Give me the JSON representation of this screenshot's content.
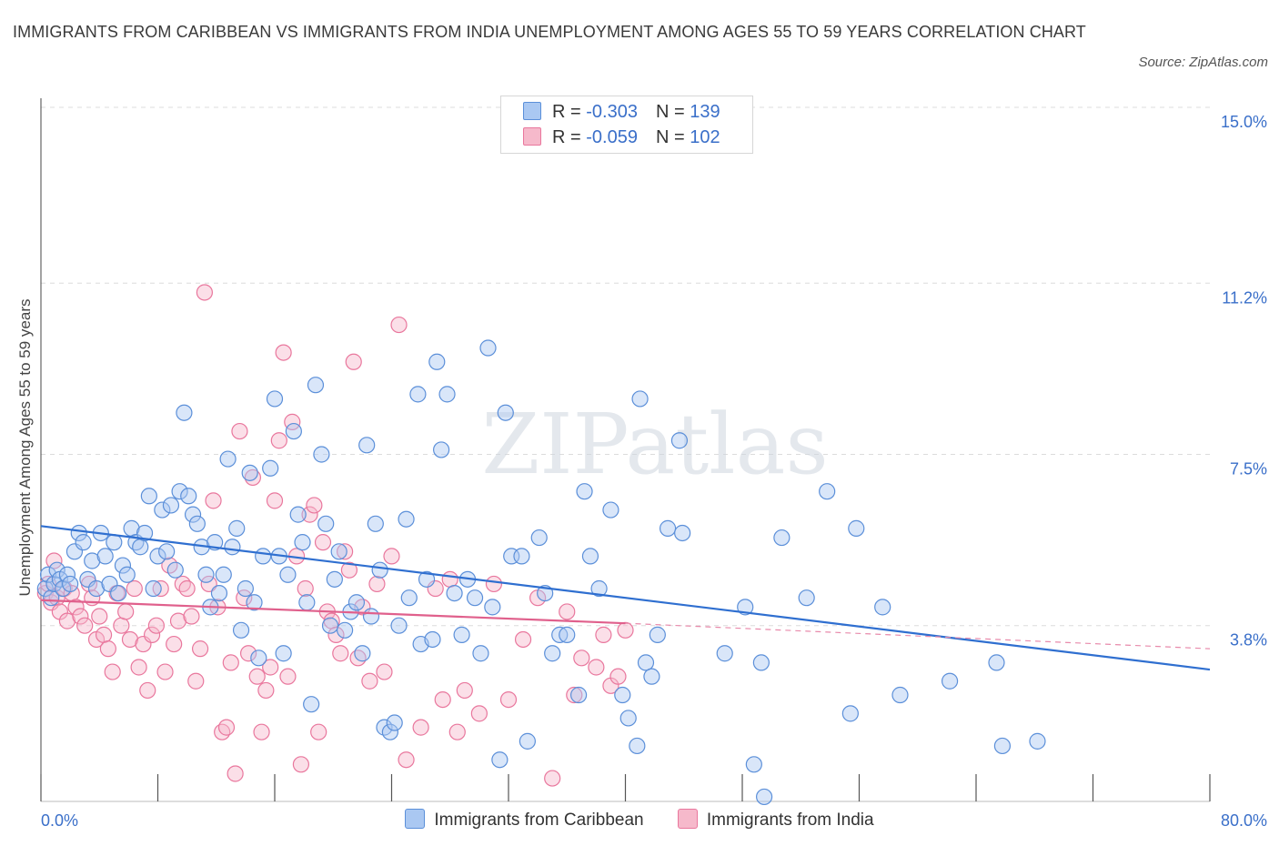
{
  "title": "IMMIGRANTS FROM CARIBBEAN VS IMMIGRANTS FROM INDIA UNEMPLOYMENT AMONG AGES 55 TO 59 YEARS CORRELATION CHART",
  "source": "Source: ZipAtlas.com",
  "watermark": "ZIPatlas",
  "legend": {
    "rows": [
      {
        "r_label": "R = ",
        "r_value": "-0.303",
        "n_label": "N = ",
        "n_value": "139",
        "color": "#aac8f2"
      },
      {
        "r_label": "R = ",
        "r_value": "-0.059",
        "n_label": "N = ",
        "n_value": "102",
        "color": "#f6b9cb"
      }
    ]
  },
  "chart_data": {
    "type": "scatter",
    "title": "IMMIGRANTS FROM CARIBBEAN VS IMMIGRANTS FROM INDIA UNEMPLOYMENT AMONG AGES 55 TO 59 YEARS CORRELATION CHART",
    "xlabel": "",
    "ylabel": "Unemployment Among Ages 55 to 59 years",
    "xlim": [
      0,
      80
    ],
    "ylim": [
      0,
      15
    ],
    "x_tick_labels": [
      "0.0%",
      "80.0%"
    ],
    "y_ticks": [
      3.8,
      7.5,
      11.2,
      15.0
    ],
    "y_tick_labels": [
      "3.8%",
      "7.5%",
      "11.2%",
      "15.0%"
    ],
    "grid": true,
    "legend_position": "top-center",
    "series": [
      {
        "name": "Immigrants from Caribbean",
        "color": "#5b8fd9",
        "fill": "#aac8f2",
        "trend": {
          "x": [
            0,
            80
          ],
          "y": [
            5.95,
            2.85
          ]
        },
        "points": [
          [
            0.3,
            4.6
          ],
          [
            0.5,
            4.9
          ],
          [
            0.7,
            4.4
          ],
          [
            0.9,
            4.7
          ],
          [
            1.1,
            5.0
          ],
          [
            1.3,
            4.8
          ],
          [
            1.5,
            4.6
          ],
          [
            1.8,
            4.9
          ],
          [
            2.0,
            4.7
          ],
          [
            2.3,
            5.4
          ],
          [
            2.6,
            5.8
          ],
          [
            2.9,
            5.6
          ],
          [
            3.2,
            4.8
          ],
          [
            3.5,
            5.2
          ],
          [
            3.8,
            4.6
          ],
          [
            4.1,
            5.8
          ],
          [
            4.4,
            5.3
          ],
          [
            4.7,
            4.7
          ],
          [
            5.0,
            5.6
          ],
          [
            5.3,
            4.5
          ],
          [
            5.6,
            5.1
          ],
          [
            5.9,
            4.9
          ],
          [
            6.2,
            5.9
          ],
          [
            6.5,
            5.6
          ],
          [
            6.8,
            5.5
          ],
          [
            7.1,
            5.8
          ],
          [
            7.4,
            6.6
          ],
          [
            7.7,
            4.6
          ],
          [
            8.0,
            5.3
          ],
          [
            8.3,
            6.3
          ],
          [
            8.6,
            5.4
          ],
          [
            8.9,
            6.4
          ],
          [
            9.2,
            5.0
          ],
          [
            9.5,
            6.7
          ],
          [
            9.8,
            8.4
          ],
          [
            10.1,
            6.6
          ],
          [
            10.4,
            6.2
          ],
          [
            10.7,
            6.0
          ],
          [
            11.0,
            5.5
          ],
          [
            11.3,
            4.9
          ],
          [
            11.6,
            4.2
          ],
          [
            11.9,
            5.6
          ],
          [
            12.2,
            4.5
          ],
          [
            12.5,
            4.9
          ],
          [
            12.8,
            7.4
          ],
          [
            13.1,
            5.5
          ],
          [
            13.4,
            5.9
          ],
          [
            13.7,
            3.7
          ],
          [
            14.0,
            4.6
          ],
          [
            14.3,
            7.1
          ],
          [
            14.6,
            4.3
          ],
          [
            14.9,
            3.1
          ],
          [
            15.2,
            5.3
          ],
          [
            15.7,
            7.2
          ],
          [
            16.0,
            8.7
          ],
          [
            16.3,
            5.3
          ],
          [
            16.6,
            3.2
          ],
          [
            16.9,
            4.9
          ],
          [
            17.3,
            8.0
          ],
          [
            17.6,
            6.2
          ],
          [
            17.9,
            5.6
          ],
          [
            18.2,
            4.3
          ],
          [
            18.5,
            2.1
          ],
          [
            18.8,
            9.0
          ],
          [
            19.2,
            7.5
          ],
          [
            19.5,
            6.0
          ],
          [
            19.8,
            3.8
          ],
          [
            20.1,
            4.8
          ],
          [
            20.4,
            5.4
          ],
          [
            20.8,
            3.7
          ],
          [
            21.2,
            4.1
          ],
          [
            21.6,
            4.3
          ],
          [
            22.0,
            3.2
          ],
          [
            22.3,
            7.7
          ],
          [
            22.6,
            4.0
          ],
          [
            22.9,
            6.0
          ],
          [
            23.2,
            5.0
          ],
          [
            23.5,
            1.6
          ],
          [
            23.9,
            1.5
          ],
          [
            24.2,
            1.7
          ],
          [
            24.5,
            3.8
          ],
          [
            25.0,
            6.1
          ],
          [
            25.2,
            4.4
          ],
          [
            25.8,
            8.8
          ],
          [
            26.0,
            3.4
          ],
          [
            26.4,
            4.8
          ],
          [
            26.8,
            3.5
          ],
          [
            27.1,
            9.5
          ],
          [
            27.4,
            7.6
          ],
          [
            27.8,
            8.8
          ],
          [
            28.3,
            4.5
          ],
          [
            28.8,
            3.6
          ],
          [
            29.2,
            4.8
          ],
          [
            29.7,
            4.4
          ],
          [
            30.1,
            3.2
          ],
          [
            30.6,
            9.8
          ],
          [
            30.9,
            4.2
          ],
          [
            31.4,
            0.9
          ],
          [
            31.8,
            8.4
          ],
          [
            32.2,
            5.3
          ],
          [
            32.9,
            5.3
          ],
          [
            33.3,
            1.3
          ],
          [
            34.1,
            5.7
          ],
          [
            34.5,
            4.5
          ],
          [
            35.0,
            3.2
          ],
          [
            35.5,
            3.6
          ],
          [
            36.0,
            3.6
          ],
          [
            36.8,
            2.3
          ],
          [
            37.2,
            6.7
          ],
          [
            37.6,
            5.3
          ],
          [
            38.2,
            4.6
          ],
          [
            39.0,
            6.3
          ],
          [
            39.8,
            2.3
          ],
          [
            40.2,
            1.8
          ],
          [
            40.8,
            1.2
          ],
          [
            41.0,
            8.7
          ],
          [
            41.4,
            3.0
          ],
          [
            41.8,
            2.7
          ],
          [
            42.2,
            3.6
          ],
          [
            42.9,
            5.9
          ],
          [
            43.7,
            7.8
          ],
          [
            43.9,
            5.8
          ],
          [
            46.8,
            3.2
          ],
          [
            48.2,
            4.2
          ],
          [
            48.8,
            0.8
          ],
          [
            49.3,
            3.0
          ],
          [
            49.5,
            0.1
          ],
          [
            50.7,
            5.7
          ],
          [
            52.4,
            4.4
          ],
          [
            53.8,
            6.7
          ],
          [
            55.4,
            1.9
          ],
          [
            55.8,
            5.9
          ],
          [
            57.6,
            4.2
          ],
          [
            58.8,
            2.3
          ],
          [
            62.2,
            2.6
          ],
          [
            65.4,
            3.0
          ],
          [
            65.8,
            1.2
          ],
          [
            68.2,
            1.3
          ]
        ]
      },
      {
        "name": "Immigrants from India",
        "color": "#e9779d",
        "fill": "#f6b9cb",
        "trend": {
          "x": [
            0,
            40
          ],
          "y": [
            4.35,
            3.85
          ]
        },
        "trend_extension": {
          "x": [
            40,
            80
          ],
          "y": [
            3.85,
            3.3
          ]
        },
        "points": [
          [
            0.3,
            4.5
          ],
          [
            0.5,
            4.7
          ],
          [
            0.7,
            4.3
          ],
          [
            0.9,
            5.2
          ],
          [
            1.1,
            4.4
          ],
          [
            1.3,
            4.1
          ],
          [
            1.6,
            4.6
          ],
          [
            1.8,
            3.9
          ],
          [
            2.1,
            4.5
          ],
          [
            2.4,
            4.2
          ],
          [
            2.7,
            4.0
          ],
          [
            3.0,
            3.8
          ],
          [
            3.3,
            4.7
          ],
          [
            3.5,
            4.4
          ],
          [
            3.8,
            3.5
          ],
          [
            4.0,
            4.0
          ],
          [
            4.3,
            3.6
          ],
          [
            4.6,
            3.3
          ],
          [
            4.9,
            2.8
          ],
          [
            5.2,
            4.5
          ],
          [
            5.5,
            3.8
          ],
          [
            5.8,
            4.1
          ],
          [
            6.1,
            3.5
          ],
          [
            6.4,
            4.6
          ],
          [
            6.7,
            2.9
          ],
          [
            7.0,
            3.4
          ],
          [
            7.3,
            2.4
          ],
          [
            7.6,
            3.6
          ],
          [
            7.9,
            3.8
          ],
          [
            8.2,
            4.6
          ],
          [
            8.5,
            2.8
          ],
          [
            8.8,
            5.1
          ],
          [
            9.1,
            3.4
          ],
          [
            9.4,
            3.9
          ],
          [
            9.7,
            4.7
          ],
          [
            10.0,
            4.6
          ],
          [
            10.3,
            4.0
          ],
          [
            10.6,
            2.6
          ],
          [
            10.9,
            3.3
          ],
          [
            11.2,
            11.0
          ],
          [
            11.5,
            4.7
          ],
          [
            11.8,
            6.5
          ],
          [
            12.1,
            4.2
          ],
          [
            12.4,
            1.5
          ],
          [
            12.7,
            1.6
          ],
          [
            13.0,
            3.0
          ],
          [
            13.3,
            0.6
          ],
          [
            13.6,
            8.0
          ],
          [
            13.9,
            4.4
          ],
          [
            14.2,
            3.2
          ],
          [
            14.5,
            7.0
          ],
          [
            14.8,
            2.7
          ],
          [
            15.1,
            1.5
          ],
          [
            15.4,
            2.4
          ],
          [
            15.7,
            2.9
          ],
          [
            16.0,
            6.5
          ],
          [
            16.3,
            7.8
          ],
          [
            16.6,
            9.7
          ],
          [
            16.9,
            2.7
          ],
          [
            17.2,
            8.2
          ],
          [
            17.5,
            5.3
          ],
          [
            17.8,
            0.8
          ],
          [
            18.1,
            4.6
          ],
          [
            18.4,
            6.2
          ],
          [
            18.7,
            6.4
          ],
          [
            19.0,
            1.5
          ],
          [
            19.3,
            5.6
          ],
          [
            19.6,
            4.1
          ],
          [
            19.9,
            3.9
          ],
          [
            20.2,
            3.6
          ],
          [
            20.5,
            3.2
          ],
          [
            20.8,
            5.4
          ],
          [
            21.1,
            5.0
          ],
          [
            21.4,
            9.5
          ],
          [
            21.7,
            3.1
          ],
          [
            22.0,
            4.2
          ],
          [
            22.5,
            2.6
          ],
          [
            23.0,
            4.7
          ],
          [
            23.5,
            2.8
          ],
          [
            24.0,
            5.3
          ],
          [
            24.5,
            10.3
          ],
          [
            25.0,
            0.9
          ],
          [
            26.0,
            1.6
          ],
          [
            27.0,
            4.6
          ],
          [
            27.5,
            2.2
          ],
          [
            28.0,
            4.8
          ],
          [
            28.5,
            1.5
          ],
          [
            29.0,
            2.4
          ],
          [
            30.0,
            1.9
          ],
          [
            31.0,
            4.7
          ],
          [
            32.0,
            2.2
          ],
          [
            33.0,
            3.5
          ],
          [
            34.0,
            4.4
          ],
          [
            35.0,
            0.5
          ],
          [
            36.0,
            4.1
          ],
          [
            36.5,
            2.3
          ],
          [
            37.0,
            3.1
          ],
          [
            38.0,
            2.9
          ],
          [
            38.5,
            3.6
          ],
          [
            39.0,
            2.5
          ],
          [
            39.5,
            2.7
          ],
          [
            40.0,
            3.7
          ]
        ]
      }
    ]
  }
}
